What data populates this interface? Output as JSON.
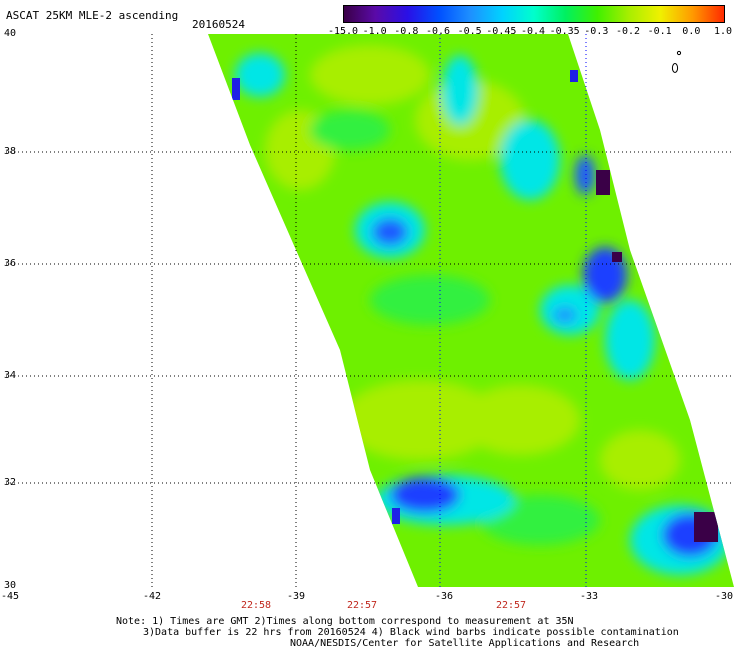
{
  "header": {
    "title": "ASCAT 25KM MLE-2 ascending",
    "date": "20160524"
  },
  "colorbar": {
    "labels": [
      "-15.0",
      "-1.0",
      "-0.8",
      "-0.6",
      "-0.5",
      "-0.45",
      "-0.4",
      "-0.35",
      "-0.3",
      "-0.2",
      "-0.1",
      "0.0",
      "1.0"
    ],
    "colors": [
      "#3a0047",
      "#5a0aa8",
      "#2a10e6",
      "#0050ff",
      "#1e90ff",
      "#00d2ff",
      "#00ffcc",
      "#00f060",
      "#40f000",
      "#a8ee00",
      "#f0f000",
      "#ff9a00",
      "#ff2a00"
    ]
  },
  "axes": {
    "lat_labels": [
      "40",
      "38",
      "36",
      "34",
      "32",
      "30"
    ],
    "lon_labels": [
      "-45",
      "-42",
      "-39",
      "-36",
      "-33",
      "-30"
    ],
    "times": [
      "22:58",
      "22:57",
      "22:57"
    ]
  },
  "notes": {
    "line1": "Note: 1) Times are GMT 2)Times along bottom correspond to measurement at 35N",
    "line2": "3)Data buffer is 22 hrs from 20160524 4) Black wind barbs indicate possible contamination",
    "line3": "NOAA/NESDIS/Center for Satellite Applications and Research"
  },
  "map": {
    "lat_range": [
      30,
      40
    ],
    "lon_range": [
      -45,
      -30
    ],
    "swath_color_main": "#7ff000",
    "contamination_color": "#3a0047"
  }
}
